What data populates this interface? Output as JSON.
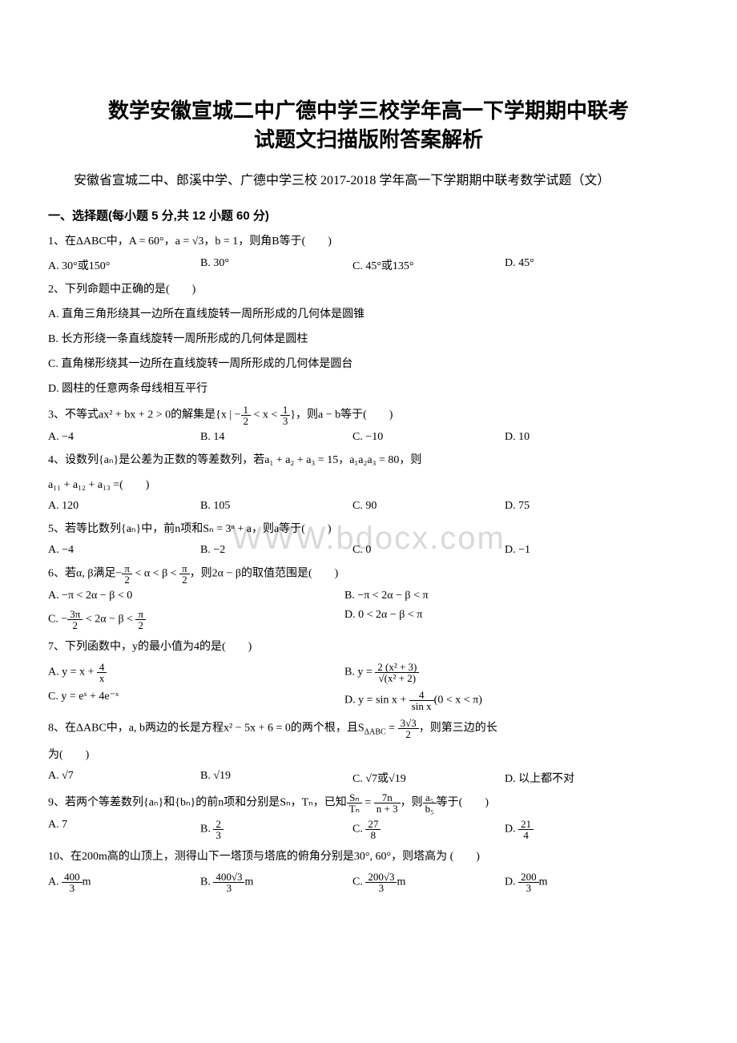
{
  "title_line1": "数学安徽宣城二中广德中学三校学年高一下学期期中联考",
  "title_line2": "试题文扫描版附答案解析",
  "subtitle": "安徽省宣城二中、郎溪中学、广德中学三校 2017-2018 学年高一下学期期中联考数学试题（文）",
  "section1": "一、选择题(每小题 5 分,共 12 小题 60 分)",
  "watermark": "WWW.bdocx.com",
  "q1": {
    "text": "1、在ΔABC中，A = 60°，a = √3，b = 1，则角B等于(　　)",
    "a": "A. 30°或150°",
    "b": "B. 30°",
    "c": "C. 45°或135°",
    "d": "D. 45°"
  },
  "q2": {
    "text": "2、下列命题中正确的是(　　)",
    "a": "A. 直角三角形绕其一边所在直线旋转一周所形成的几何体是圆锥",
    "b": "B. 长方形绕一条直线旋转一周所形成的几何体是圆柱",
    "c": "C. 直角梯形绕其一边所在直线旋转一周所形成的几何体是圆台",
    "d": "D. 圆柱的任意两条母线相互平行"
  },
  "q3": {
    "text_pre": "3、不等式ax² + bx + 2 > 0的解集是{x | −",
    "text_mid": " < x < ",
    "text_post": "}，则a − b等于(　　)",
    "a": "A. −4",
    "b": "B. 14",
    "c": "C. −10",
    "d": "D. 10"
  },
  "q4": {
    "text": "4、设数列{aₙ}是公差为正数的等差数列，若a₁ + a₂ + a₃ = 15，a₁a₂a₃ = 80，则",
    "text2": "a₁₁ + a₁₂ + a₁₃ =(　　)",
    "a": "A. 120",
    "b": "B. 105",
    "c": "C. 90",
    "d": "D. 75"
  },
  "q5": {
    "text": "5、若等比数列{aₙ}中，前n项和Sₙ = 3ⁿ + a，则a等于(　　)",
    "a": "A. −4",
    "b": "B. −2",
    "c": "C. 0",
    "d": "D. −1"
  },
  "q6": {
    "text_pre": "6、若α, β满足−",
    "text_mid": " < α < β < ",
    "text_post": "，则2α − β的取值范围是(　　)",
    "a": "A. −π < 2α − β < 0",
    "b": "B. −π < 2α − β < π",
    "c_pre": "C. −",
    "c_mid": " < 2α − β < ",
    "d": "D. 0 < 2α − β < π"
  },
  "q7": {
    "text": "7、下列函数中，y的最小值为4的是(　　)",
    "a_pre": "A. y = x + ",
    "b_pre": "B. y = ",
    "c": "C. y = eˣ + 4e⁻ˣ",
    "d_pre": "D. y = sin x + ",
    "d_post": "(0 < x < π)"
  },
  "q8": {
    "text_pre": "8、在ΔABC中，a, b两边的长是方程x² − 5x + 6 = 0的两个根，且S",
    "text_mid": " = ",
    "text_post": "，则第三边的长",
    "text2": "为(　　)",
    "a": "A. √7",
    "b": "B. √19",
    "c": "C. √7或√19",
    "d": "D. 以上都不对"
  },
  "q9": {
    "text_pre": "9、若两个等差数列{aₙ}和{bₙ}的前n项和分别是Sₙ，Tₙ，已知",
    "text_mid": " = ",
    "text_mid2": "，则",
    "text_post": "等于(　　)",
    "a": "A. 7",
    "b_pre": "B. ",
    "c_pre": "C. ",
    "d_pre": "D. "
  },
  "q10": {
    "text": "10、在200m高的山顶上，测得山下一塔顶与塔底的俯角分别是30°, 60°，则塔高为 (　　)",
    "a_pre": "A. ",
    "a_post": "m",
    "b_pre": "B. ",
    "b_post": "m",
    "c_pre": "C. ",
    "c_post": "m",
    "d_pre": "D. ",
    "d_post": "m"
  }
}
